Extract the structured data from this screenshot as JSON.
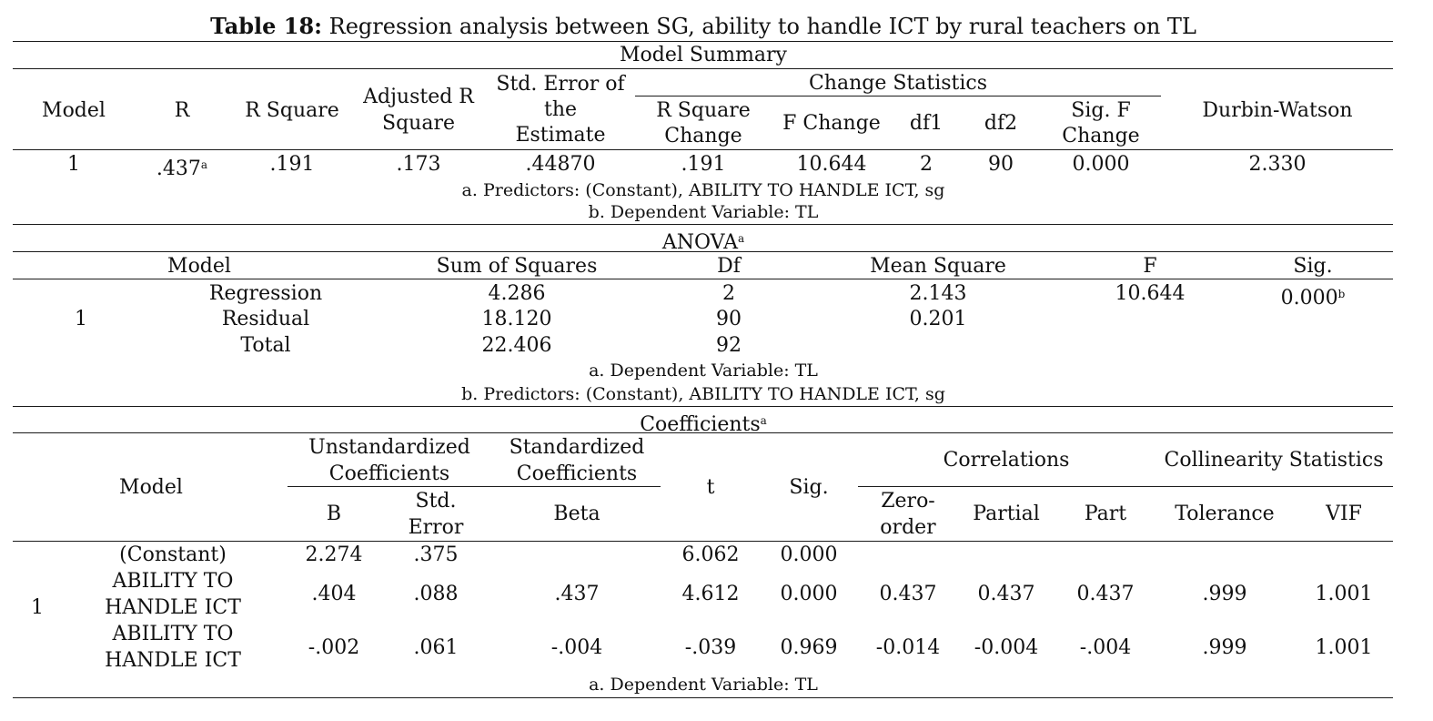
{
  "title": {
    "bold": "Table 18:",
    "rest": " Regression analysis between SG, ability to handle ICT by rural teachers on TL"
  },
  "model_summary": {
    "caption": "Model Summary",
    "headers": {
      "model": "Model",
      "r": "R",
      "r_square": "R Square",
      "adj_r_1": "Adjusted R",
      "adj_r_2": "Square",
      "std_err_1": "Std. Error of",
      "std_err_2": "the",
      "std_err_3": "Estimate",
      "change_statistics": "Change Statistics",
      "r_sq_change_1": "R Square",
      "r_sq_change_2": "Change",
      "f_change": "F Change",
      "df1": "df1",
      "df2": "df2",
      "sig_f_1": "Sig. F",
      "sig_f_2": "Change",
      "durbin_watson": "Durbin-Watson"
    },
    "row": {
      "model": "1",
      "r": ".437",
      "r_sup": "a",
      "r_square": ".191",
      "adj_r_square": ".173",
      "std_err": ".44870",
      "r_sq_change": ".191",
      "f_change": "10.644",
      "df1": "2",
      "df2": "90",
      "sig_f_change": "0.000",
      "durbin_watson": "2.330"
    },
    "note_a": "a. Predictors: (Constant), ABILITY TO HANDLE ICT, sg",
    "note_b": "b. Dependent Variable: TL"
  },
  "anova": {
    "caption": "ANOVA",
    "caption_sup": "a",
    "headers": {
      "model": "Model",
      "sum_sq": "Sum of Squares",
      "df": "Df",
      "mean_sq": "Mean Square",
      "f": "F",
      "sig": "Sig."
    },
    "model_num": "1",
    "rows": [
      {
        "label": "Regression",
        "sum_sq": "4.286",
        "df": "2",
        "mean_sq": "2.143",
        "f": "10.644",
        "sig": "0.000",
        "sig_sup": "b"
      },
      {
        "label": "Residual",
        "sum_sq": "18.120",
        "df": "90",
        "mean_sq": "0.201"
      },
      {
        "label": "Total",
        "sum_sq": "22.406",
        "df": "92"
      }
    ],
    "note_a": "a. Dependent Variable: TL",
    "note_b": "b. Predictors: (Constant), ABILITY TO HANDLE ICT, sg"
  },
  "coefficients": {
    "caption": "Coefficients",
    "caption_sup": "a",
    "headers": {
      "model": "Model",
      "unstd_1": "Unstandardized",
      "unstd_2": "Coefficients",
      "std_1": "Standardized",
      "std_2": "Coefficients",
      "t": "t",
      "sig": "Sig.",
      "correlations": "Correlations",
      "collinearity": "Collinearity Statistics",
      "b": "B",
      "std_error_1": "Std.",
      "std_error_2": "Error",
      "beta": "Beta",
      "zero_order_1": "Zero-",
      "zero_order_2": "order",
      "partial": "Partial",
      "part": "Part",
      "tolerance": "Tolerance",
      "vif": "VIF"
    },
    "model_num": "1",
    "rows": [
      {
        "label_1": "(Constant)",
        "label_2": "",
        "b": "2.274",
        "std_error": ".375",
        "beta": "",
        "t": "6.062",
        "sig": "0.000",
        "zero_order": "",
        "partial": "",
        "part": "",
        "tolerance": "",
        "vif": ""
      },
      {
        "label_1": "ABILITY TO",
        "label_2": "HANDLE ICT",
        "b": ".404",
        "std_error": ".088",
        "beta": ".437",
        "t": "4.612",
        "sig": "0.000",
        "zero_order": "0.437",
        "partial": "0.437",
        "part": "0.437",
        "tolerance": ".999",
        "vif": "1.001"
      },
      {
        "label_1": "ABILITY TO",
        "label_2": "HANDLE ICT",
        "b": "-.002",
        "std_error": ".061",
        "beta": "-.004",
        "t": "-.039",
        "sig": "0.969",
        "zero_order": "-0.014",
        "partial": "-0.004",
        "part": "-.004",
        "tolerance": ".999",
        "vif": "1.001"
      }
    ],
    "note_a": "a. Dependent Variable: TL"
  }
}
